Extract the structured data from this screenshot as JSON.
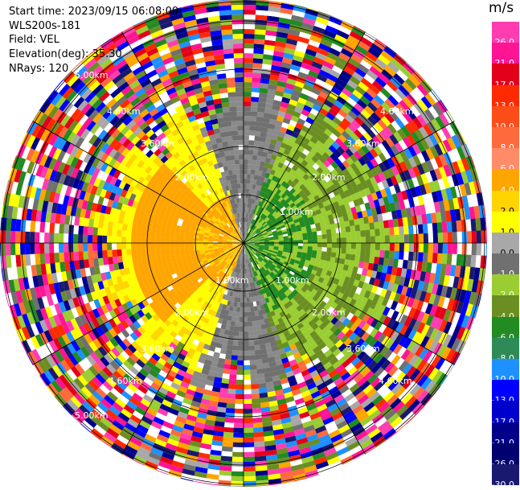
{
  "header": {
    "start_time": "Start time: 2023/09/15 06:08:09",
    "instrument": "WLS200s-181",
    "field": "Field: VEL",
    "elevation": "Elevation(deg): 35.30",
    "nrays": "NRays: 120"
  },
  "colorbar": {
    "unit": "m/s",
    "ticks": [
      "26.0",
      "21.0",
      "17.0",
      "13.0",
      "10.0",
      "8.0",
      "6.0",
      "4.0",
      "2.0",
      "1.0",
      "0.0",
      "-1.0",
      "-2.0",
      "-4.0",
      "-6.0",
      "-8.0",
      "-10.0",
      "-13.0",
      "-17.0",
      "-21.0",
      "-26.0",
      "-30.0"
    ],
    "colors": [
      "#ff3db0",
      "#ff1493",
      "#e3001b",
      "#ff2a00",
      "#ff4d1a",
      "#ff6a3d",
      "#ff8c69",
      "#ffa500",
      "#ffd400",
      "#ffff00",
      "#a8a8a8",
      "#707070",
      "#9acd32",
      "#6b8e23",
      "#228b22",
      "#2e8b57",
      "#1e90ff",
      "#0000ff",
      "#0000cd",
      "#00008b",
      "#000070",
      "#191970"
    ]
  },
  "chart_data": {
    "type": "ppi",
    "field": "VEL",
    "nrays": 120,
    "range_rings_km": [
      1.0,
      2.0,
      3.6,
      4.6,
      5.0
    ],
    "range_labels": [
      "1.00km",
      "2.00km",
      "3.60km",
      "4.60km",
      "5.00km"
    ],
    "velocity_regions": [
      {
        "sector": "west",
        "velocity_ms": [
          1.0,
          6.0
        ],
        "color_name": "yellow-orange"
      },
      {
        "sector": "east",
        "velocity_ms": [
          -6.0,
          -1.0
        ],
        "color_name": "green"
      },
      {
        "sector": "north-south boundary",
        "velocity_ms": [
          -1.0,
          1.0
        ],
        "color_name": "gray"
      }
    ],
    "noise_beyond_km": 3.6
  }
}
